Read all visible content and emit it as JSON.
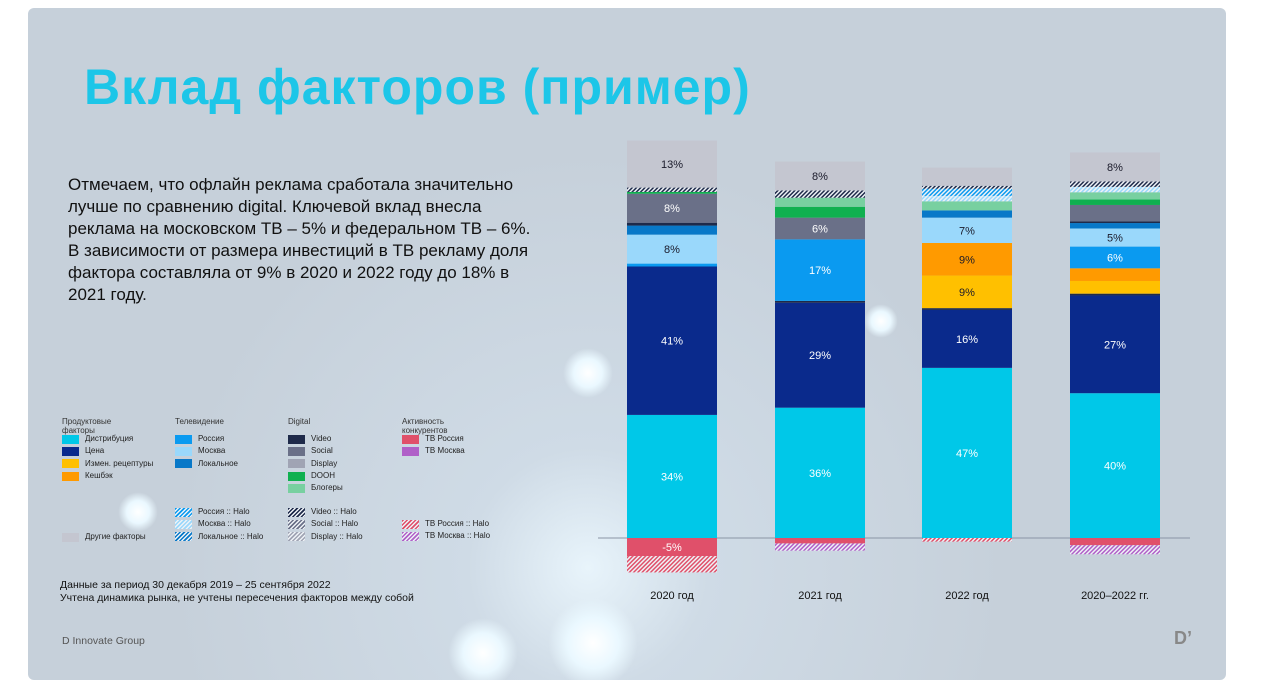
{
  "title": "Вклад факторов (пример)",
  "paragraph": "Отмечаем, что офлайн реклама сработала значительно лучше по сравнению digital. Ключевой вклад внесла реклама на московском ТВ – 5% и федеральном ТВ – 6%. В зависимости от размера инвестиций в ТВ рекламу доля фактора составляла от 9% в 2020 и 2022 году до 18% в 2021 году.",
  "legend": {
    "groups": [
      {
        "title": "Продуктовые факторы",
        "items": [
          {
            "label": "Дистрибуция",
            "key": "dist"
          },
          {
            "label": "Цена",
            "key": "price"
          },
          {
            "label": "Измен. рецептуры",
            "key": "recipe"
          },
          {
            "label": "Кешбэк",
            "key": "cashback"
          }
        ]
      },
      {
        "title": "Телевидение",
        "items": [
          {
            "label": "Россия",
            "key": "russia"
          },
          {
            "label": "Москва",
            "key": "moscow"
          },
          {
            "label": "Локальное",
            "key": "local"
          }
        ]
      },
      {
        "title": "Digital",
        "items": [
          {
            "label": "Video",
            "key": "video"
          },
          {
            "label": "Social",
            "key": "social"
          },
          {
            "label": "Display",
            "key": "display"
          },
          {
            "label": "DOOH",
            "key": "dooh"
          },
          {
            "label": "Блогеры",
            "key": "blogers"
          }
        ]
      },
      {
        "title": "Активность конкурентов",
        "items": [
          {
            "label": "ТВ Россия",
            "key": "tvrussia"
          },
          {
            "label": "ТВ Москва",
            "key": "tvmoscow"
          }
        ]
      }
    ],
    "halo": [
      {
        "items": [
          {
            "label": "Другие факторы",
            "key": "other"
          }
        ]
      },
      {
        "items": [
          {
            "label": "Россия :: Halo",
            "key": "h_russia"
          },
          {
            "label": "Москва :: Halo",
            "key": "h_moscow"
          },
          {
            "label": "Локальное :: Halo",
            "key": "h_local"
          }
        ]
      },
      {
        "items": [
          {
            "label": "Video :: Halo",
            "key": "h_video"
          },
          {
            "label": "Social :: Halo",
            "key": "h_social"
          },
          {
            "label": "Display :: Halo",
            "key": "h_display"
          }
        ]
      },
      {
        "items": [
          {
            "label": "ТВ Россия :: Halo",
            "key": "h_tvrussia"
          },
          {
            "label": "ТВ Москва :: Halo",
            "key": "h_tvmoscow"
          }
        ]
      }
    ]
  },
  "colors": {
    "dist": "#00c8e8",
    "price": "#0a2a8c",
    "recipe": "#ffc000",
    "cashback": "#ff9a00",
    "russia": "#0a9af0",
    "moscow": "#9ad8fb",
    "local": "#0878c8",
    "video": "#1e2a4a",
    "social": "#6a7088",
    "display": "#a0a4b4",
    "dooh": "#10b050",
    "blogers": "#78d0a0",
    "tvrussia": "#e0506a",
    "tvmoscow": "#b060c8",
    "other": "#c4c6d0",
    "h_russia": "#0a9af0",
    "h_moscow": "#9ad8fb",
    "h_local": "#0878c8",
    "h_video": "#1e2a4a",
    "h_social": "#6a7088",
    "h_display": "#a0a4b4",
    "h_tvrussia": "#e0506a",
    "h_tvmoscow": "#b060c8"
  },
  "note": [
    "Данные за период 30 декабря 2019 – 25 сентября 2022",
    "Учтена динамика рынка, не учтены пересечения факторов между собой"
  ],
  "brand": "D Innovate Group",
  "chart_data": {
    "type": "bar",
    "stacked": true,
    "unit": "%",
    "categories": [
      "2020 год",
      "2021 год",
      "2022 год",
      "2020–2022 гг."
    ],
    "series_by_category": [
      {
        "pos": [
          [
            "dist",
            34,
            "34%"
          ],
          [
            "price",
            41,
            "41%"
          ],
          [
            "russia",
            0.8,
            ""
          ],
          [
            "moscow",
            8,
            "8%"
          ],
          [
            "local",
            2.5,
            ""
          ],
          [
            "video",
            0.8,
            ""
          ],
          [
            "social",
            8,
            "8%"
          ],
          [
            "dooh",
            0.5,
            ""
          ],
          [
            "h_video",
            1.2,
            ""
          ],
          [
            "other",
            13,
            "13%"
          ]
        ],
        "neg": [
          [
            "tvrussia",
            5,
            "-5%"
          ],
          [
            "h_tvrussia",
            4.5,
            ""
          ]
        ]
      },
      {
        "pos": [
          [
            "dist",
            36,
            "36%"
          ],
          [
            "price",
            29,
            "29%"
          ],
          [
            "video",
            0.5,
            ""
          ],
          [
            "russia",
            17,
            "17%"
          ],
          [
            "social",
            6,
            "6%"
          ],
          [
            "dooh",
            3,
            ""
          ],
          [
            "blogers",
            2.5,
            ""
          ],
          [
            "h_video",
            2,
            ""
          ],
          [
            "other",
            8,
            "8%"
          ]
        ],
        "neg": [
          [
            "tvrussia",
            1.5,
            ""
          ],
          [
            "h_tvmoscow",
            2,
            ""
          ]
        ]
      },
      {
        "pos": [
          [
            "dist",
            47,
            "47%"
          ],
          [
            "price",
            16,
            "16%"
          ],
          [
            "video",
            0.5,
            ""
          ],
          [
            "recipe",
            9,
            "9%"
          ],
          [
            "cashback",
            9,
            "9%"
          ],
          [
            "moscow",
            7,
            "7%"
          ],
          [
            "local",
            2,
            ""
          ],
          [
            "blogers",
            2.5,
            ""
          ],
          [
            "h_moscow",
            1.5,
            ""
          ],
          [
            "h_russia",
            2,
            ""
          ],
          [
            "h_video",
            0.8,
            ""
          ],
          [
            "other",
            5,
            ""
          ]
        ],
        "neg": [
          [
            "h_tvrussia",
            1,
            ""
          ]
        ]
      },
      {
        "pos": [
          [
            "dist",
            40,
            "40%"
          ],
          [
            "price",
            27,
            "27%"
          ],
          [
            "video",
            0.5,
            ""
          ],
          [
            "recipe",
            3.5,
            ""
          ],
          [
            "cashback",
            3.5,
            ""
          ],
          [
            "russia",
            6,
            "6%"
          ],
          [
            "moscow",
            5,
            "5%"
          ],
          [
            "local",
            1.5,
            ""
          ],
          [
            "video",
            0.5,
            ""
          ],
          [
            "social",
            4.5,
            ""
          ],
          [
            "dooh",
            1.5,
            ""
          ],
          [
            "blogers",
            2,
            ""
          ],
          [
            "h_moscow",
            1.5,
            ""
          ],
          [
            "h_video",
            1.5,
            ""
          ],
          [
            "other",
            8,
            "8%"
          ]
        ],
        "neg": [
          [
            "tvrussia",
            2,
            ""
          ],
          [
            "h_tvmoscow",
            2.5,
            ""
          ]
        ]
      }
    ],
    "ylim": [
      -10,
      115
    ],
    "grid": false,
    "legend": "bottom-left"
  }
}
